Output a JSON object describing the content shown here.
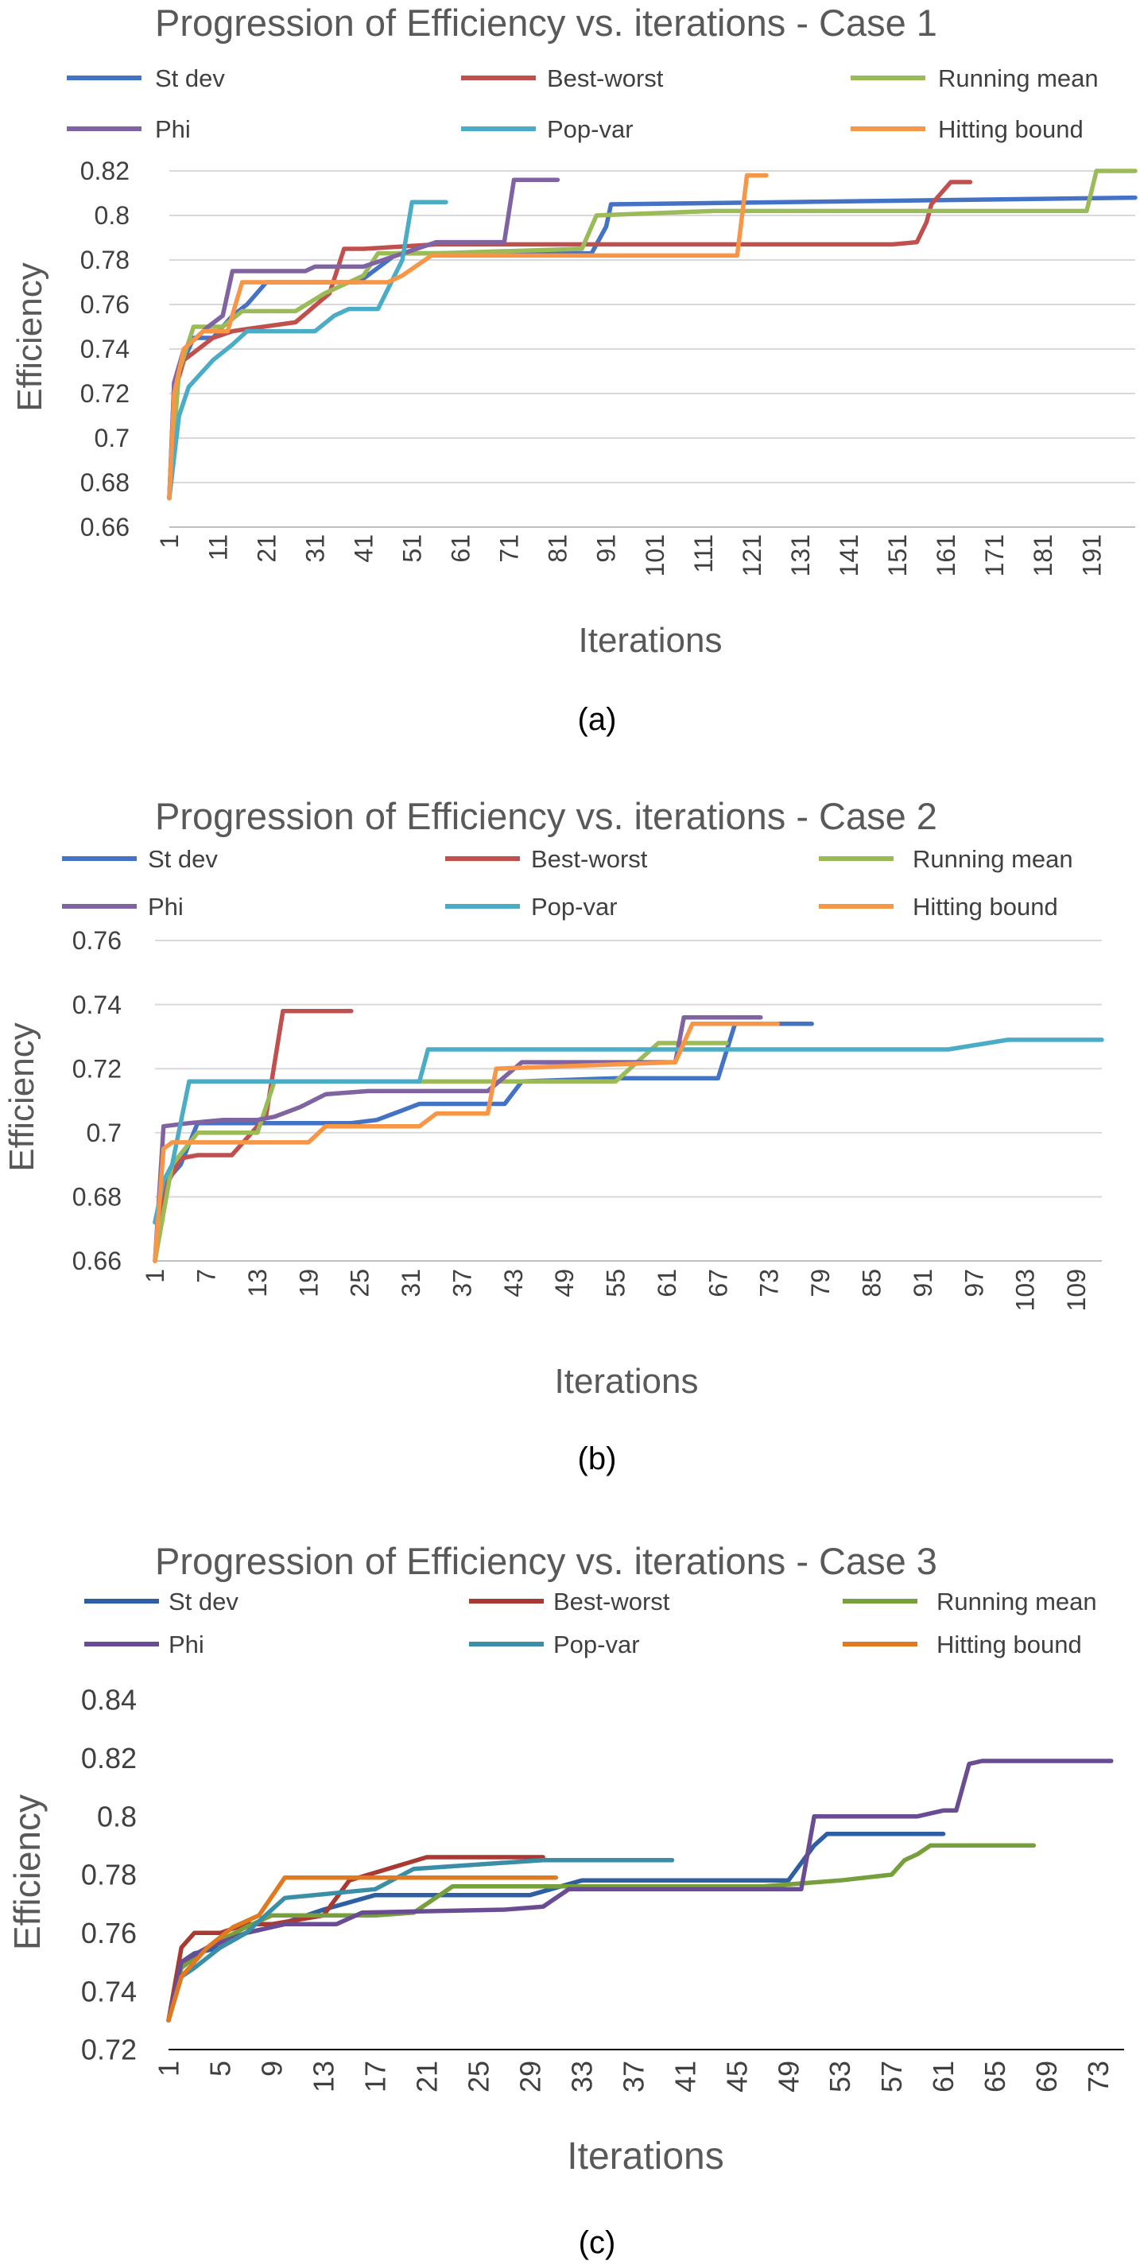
{
  "chart_data": [
    {
      "type": "line",
      "title": "Progression of Efficiency vs. iterations - Case 1",
      "xlabel": "Iterations",
      "ylabel": "Efficiency",
      "caption": "(a)",
      "ylim": [
        0.66,
        0.82
      ],
      "y_ticks": [
        "0.66",
        "0.68",
        "0.7",
        "0.72",
        "0.74",
        "0.76",
        "0.78",
        "0.8",
        "0.82"
      ],
      "x_tick_labels": [
        "1",
        "11",
        "21",
        "31",
        "41",
        "51",
        "61",
        "71",
        "81",
        "91",
        "101",
        "111",
        "121",
        "131",
        "141",
        "151",
        "161",
        "171",
        "181",
        "191"
      ],
      "xlim": [
        1,
        200
      ],
      "grid": "horizontal",
      "legend_position": "top",
      "series": [
        {
          "name": "St dev",
          "color": "#4472C4",
          "x": [
            1,
            2,
            4,
            6,
            10,
            14,
            17,
            21,
            40,
            48,
            88,
            91,
            92,
            200
          ],
          "y": [
            0.673,
            0.725,
            0.735,
            0.745,
            0.745,
            0.755,
            0.76,
            0.77,
            0.77,
            0.783,
            0.783,
            0.795,
            0.805,
            0.808
          ]
        },
        {
          "name": "Best-worst",
          "color": "#C0504D",
          "x": [
            1,
            2,
            4,
            7,
            10,
            14,
            17,
            27,
            34,
            37,
            41,
            56,
            150,
            155,
            157,
            158,
            162,
            166
          ],
          "y": [
            0.673,
            0.72,
            0.735,
            0.74,
            0.745,
            0.748,
            0.749,
            0.752,
            0.765,
            0.785,
            0.785,
            0.787,
            0.787,
            0.788,
            0.797,
            0.805,
            0.815,
            0.815
          ]
        },
        {
          "name": "Running mean",
          "color": "#9BBB59",
          "x": [
            1,
            3,
            6,
            12,
            16,
            27,
            33,
            41,
            44,
            56,
            86,
            89,
            113,
            190,
            192,
            200
          ],
          "y": [
            0.673,
            0.73,
            0.75,
            0.75,
            0.757,
            0.757,
            0.765,
            0.773,
            0.783,
            0.783,
            0.785,
            0.8,
            0.802,
            0.802,
            0.82,
            0.82
          ]
        },
        {
          "name": "Phi",
          "color": "#8064A2",
          "x": [
            1,
            2,
            4,
            9,
            12,
            14,
            17,
            29,
            31,
            41,
            56,
            70,
            72,
            81
          ],
          "y": [
            0.673,
            0.725,
            0.74,
            0.75,
            0.755,
            0.775,
            0.775,
            0.775,
            0.777,
            0.777,
            0.788,
            0.788,
            0.816,
            0.816
          ]
        },
        {
          "name": "Pop-var",
          "color": "#4BACC6",
          "x": [
            1,
            3,
            5,
            10,
            14,
            17,
            31,
            35,
            38,
            44,
            49,
            51,
            58
          ],
          "y": [
            0.673,
            0.71,
            0.723,
            0.735,
            0.742,
            0.748,
            0.748,
            0.755,
            0.758,
            0.758,
            0.78,
            0.806,
            0.806
          ]
        },
        {
          "name": "Hitting bound",
          "color": "#F79646",
          "x": [
            1,
            2,
            4,
            8,
            13,
            16,
            24,
            46,
            49,
            55,
            118,
            120,
            124
          ],
          "y": [
            0.673,
            0.72,
            0.74,
            0.748,
            0.748,
            0.77,
            0.77,
            0.77,
            0.773,
            0.782,
            0.782,
            0.818,
            0.818
          ]
        }
      ]
    },
    {
      "type": "line",
      "title": "Progression of Efficiency vs. iterations - Case 2",
      "xlabel": "Iterations",
      "ylabel": "Efficiency",
      "caption": "(b)",
      "ylim": [
        0.66,
        0.76
      ],
      "y_ticks": [
        "0.66",
        "0.68",
        "0.7",
        "0.72",
        "0.74",
        "0.76"
      ],
      "x_tick_labels": [
        "1",
        "7",
        "13",
        "19",
        "25",
        "31",
        "37",
        "43",
        "49",
        "55",
        "61",
        "67",
        "73",
        "79",
        "85",
        "91",
        "97",
        "103",
        "109"
      ],
      "xlim": [
        1,
        112
      ],
      "grid": "horizontal",
      "legend_position": "top",
      "series": [
        {
          "name": "St dev",
          "color": "#4472C4",
          "x": [
            1,
            2,
            4,
            6,
            10,
            24,
            27,
            32,
            42,
            44,
            55,
            67,
            69,
            78
          ],
          "y": [
            0.672,
            0.684,
            0.69,
            0.703,
            0.703,
            0.703,
            0.704,
            0.709,
            0.709,
            0.716,
            0.717,
            0.717,
            0.734,
            0.734
          ]
        },
        {
          "name": "Best-worst",
          "color": "#C0504D",
          "x": [
            1,
            2,
            4,
            6,
            10,
            14,
            16,
            24
          ],
          "y": [
            0.66,
            0.682,
            0.692,
            0.693,
            0.693,
            0.705,
            0.738,
            0.738
          ]
        },
        {
          "name": "Running mean",
          "color": "#9BBB59",
          "x": [
            1,
            3,
            6,
            10,
            13,
            15,
            43,
            55,
            60,
            68
          ],
          "y": [
            0.66,
            0.69,
            0.7,
            0.7,
            0.7,
            0.716,
            0.716,
            0.716,
            0.728,
            0.728
          ]
        },
        {
          "name": "Phi",
          "color": "#8064A2",
          "x": [
            1,
            2,
            5,
            9,
            13,
            15,
            18,
            21,
            26,
            40,
            44,
            62,
            63,
            72
          ],
          "y": [
            0.66,
            0.702,
            0.703,
            0.704,
            0.704,
            0.705,
            0.708,
            0.712,
            0.713,
            0.713,
            0.722,
            0.722,
            0.736,
            0.736
          ]
        },
        {
          "name": "Pop-var",
          "color": "#4BACC6",
          "x": [
            1,
            2,
            3,
            5,
            7,
            32,
            33,
            94,
            101,
            112
          ],
          "y": [
            0.672,
            0.685,
            0.69,
            0.716,
            0.716,
            0.716,
            0.726,
            0.726,
            0.729,
            0.729
          ]
        },
        {
          "name": "Hitting bound",
          "color": "#F79646",
          "x": [
            1,
            2,
            3,
            6,
            19,
            21,
            26,
            32,
            34,
            40,
            41,
            62,
            64,
            74
          ],
          "y": [
            0.66,
            0.695,
            0.697,
            0.697,
            0.697,
            0.702,
            0.702,
            0.702,
            0.706,
            0.706,
            0.72,
            0.722,
            0.734,
            0.734
          ]
        }
      ]
    },
    {
      "type": "line",
      "title": "Progression of Efficiency vs. iterations - Case 3",
      "xlabel": "Iterations",
      "ylabel": "Efficiency",
      "caption": "(c)",
      "ylim": [
        0.72,
        0.84
      ],
      "y_ticks": [
        "0.72",
        "0.74",
        "0.76",
        "0.78",
        "0.8",
        "0.82",
        "0.84"
      ],
      "x_tick_labels": [
        "1",
        "5",
        "9",
        "13",
        "17",
        "21",
        "25",
        "29",
        "33",
        "37",
        "41",
        "45",
        "49",
        "53",
        "57",
        "61",
        "65",
        "69",
        "73"
      ],
      "xlim": [
        1,
        75
      ],
      "grid": "none",
      "legend_position": "top",
      "series": [
        {
          "name": "St dev",
          "color": "#2E5FA3",
          "x": [
            1,
            2,
            3,
            5,
            7,
            9,
            13,
            17,
            29,
            33,
            49,
            51,
            52,
            61
          ],
          "y": [
            0.73,
            0.75,
            0.753,
            0.755,
            0.76,
            0.762,
            0.768,
            0.773,
            0.773,
            0.778,
            0.778,
            0.79,
            0.794,
            0.794
          ]
        },
        {
          "name": "Best-worst",
          "color": "#A93A32",
          "x": [
            1,
            2,
            3,
            5,
            7,
            9,
            13,
            15,
            21,
            30
          ],
          "y": [
            0.73,
            0.755,
            0.76,
            0.76,
            0.763,
            0.763,
            0.766,
            0.778,
            0.786,
            0.786
          ]
        },
        {
          "name": "Running mean",
          "color": "#77A03C",
          "x": [
            1,
            2,
            4,
            7,
            9,
            13,
            17,
            20,
            23,
            47,
            53,
            57,
            58,
            59,
            60,
            68
          ],
          "y": [
            0.73,
            0.748,
            0.755,
            0.762,
            0.766,
            0.766,
            0.766,
            0.767,
            0.776,
            0.776,
            0.778,
            0.78,
            0.785,
            0.787,
            0.79,
            0.79
          ]
        },
        {
          "name": "Phi",
          "color": "#6A4C93",
          "x": [
            1,
            2,
            4,
            7,
            10,
            14,
            16,
            27,
            30,
            32,
            50,
            51,
            59,
            61,
            62,
            63,
            64,
            74
          ],
          "y": [
            0.73,
            0.75,
            0.755,
            0.76,
            0.763,
            0.763,
            0.767,
            0.768,
            0.769,
            0.775,
            0.775,
            0.8,
            0.8,
            0.802,
            0.802,
            0.818,
            0.819,
            0.819
          ]
        },
        {
          "name": "Pop-var",
          "color": "#3A8FA6",
          "x": [
            1,
            2,
            3,
            5,
            7,
            10,
            17,
            20,
            30,
            40
          ],
          "y": [
            0.73,
            0.745,
            0.748,
            0.755,
            0.76,
            0.772,
            0.775,
            0.782,
            0.785,
            0.785
          ]
        },
        {
          "name": "Hitting bound",
          "color": "#E0791F",
          "x": [
            1,
            2,
            4,
            6,
            8,
            10,
            13,
            17,
            20,
            31
          ],
          "y": [
            0.73,
            0.745,
            0.755,
            0.762,
            0.766,
            0.779,
            0.779,
            0.779,
            0.779,
            0.779
          ]
        }
      ]
    }
  ]
}
